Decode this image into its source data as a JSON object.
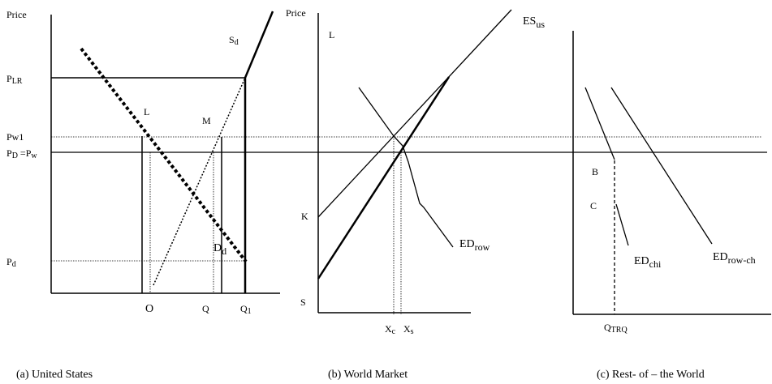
{
  "panels": {
    "us": {
      "caption": "(a) United States",
      "axis_title": "Price",
      "price_labels": {
        "plr": "P",
        "plr_sub": "LR",
        "pw1": "Pw1",
        "pd_eq_pw": "P",
        "pd_eq_pw_sub1": "D",
        "pd_eq_pw_mid": " =P",
        "pd_eq_pw_sub2": "w",
        "pd": "P",
        "pd_sub": "d"
      },
      "point_labels": {
        "l": "L",
        "m": "M"
      },
      "curve_labels": {
        "sd": "S",
        "sd_sub": "d",
        "dd": "D",
        "dd_sub": "d"
      },
      "quantity_labels": {
        "o": "O",
        "q": "Q",
        "q1": "Q",
        "q1_sub": "1"
      }
    },
    "world": {
      "caption": "(b) World Market",
      "axis_title": "Price",
      "point_labels": {
        "l": "L",
        "k": "K",
        "s": "S"
      },
      "curve_labels": {
        "es": "ES",
        "es_sub": "us",
        "ed": "ED",
        "ed_sub": "row"
      },
      "quantity_labels": {
        "xc": "X",
        "xc_sub": "c",
        "xs": "X",
        "xs_sub": "s"
      }
    },
    "row": {
      "caption": "(c) Rest- of – the World",
      "point_labels": {
        "b": "B",
        "c": "C"
      },
      "curve_labels": {
        "edchi": "ED",
        "edchi_sub": "chi",
        "edrowch": "ED",
        "edrowch_sub": "row-ch"
      },
      "quantity_labels": {
        "qtrq": "Q",
        "qtrq_sub": "TRQ"
      }
    }
  }
}
